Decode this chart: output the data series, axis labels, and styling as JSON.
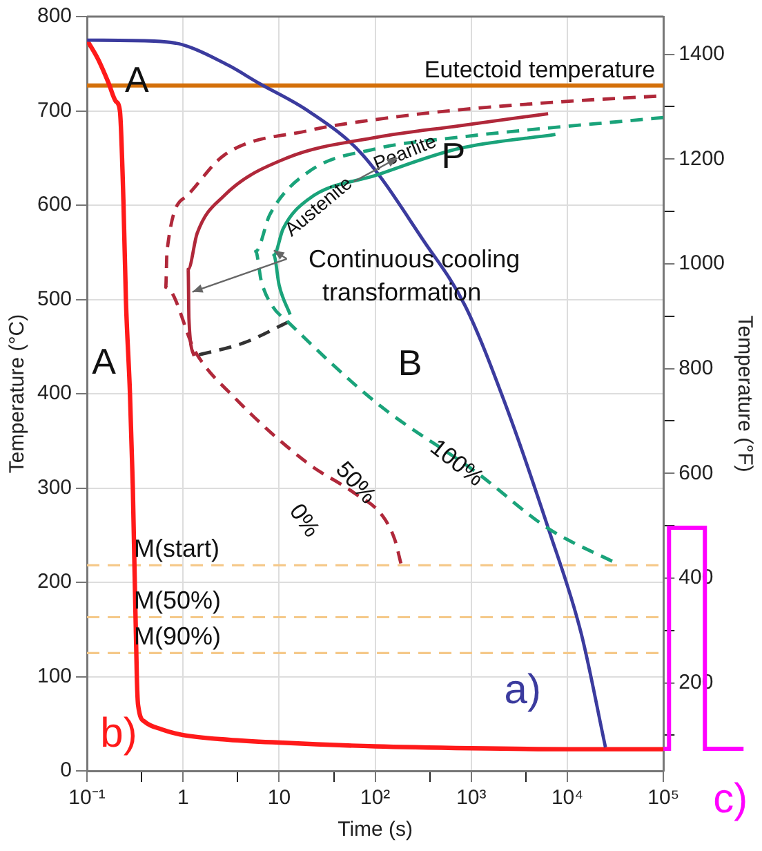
{
  "chart_data": {
    "type": "line",
    "xlabel": "Time (s)",
    "ylabel": "Temperature (°C)",
    "y2label": "Temperature (°F)",
    "log": "x",
    "grid": true,
    "marker": "none",
    "xlim": [
      0.1,
      100000
    ],
    "xticks": [
      {
        "value": 0.1,
        "label": "10⁻¹"
      },
      {
        "value": 0.37,
        "label": null
      },
      1,
      {
        "value": 3.7,
        "label": null
      },
      10,
      {
        "value": 37,
        "label": null
      },
      {
        "value": 100,
        "label": "10²"
      },
      {
        "value": 370,
        "label": null
      },
      {
        "value": 1000,
        "label": "10³"
      },
      {
        "value": 3700,
        "label": null
      },
      {
        "value": 10000,
        "label": "10⁴"
      },
      {
        "value": 100000,
        "label": "10⁵"
      }
    ],
    "ylim": [
      0,
      800
    ],
    "yticks": [
      0,
      100,
      200,
      300,
      400,
      500,
      600,
      700,
      800
    ],
    "y2lim": [
      32,
      1472
    ],
    "y2ticks": [
      {
        "value": 100,
        "label": null
      },
      200,
      {
        "value": 300,
        "label": null
      },
      400,
      {
        "value": 500,
        "label": null
      },
      600,
      {
        "value": 700,
        "label": null
      },
      800,
      {
        "value": 900,
        "label": null
      },
      1000,
      {
        "value": 1100,
        "label": null
      },
      1200,
      {
        "value": 1300,
        "label": null
      },
      1400
    ],
    "series": [
      {
        "name": "b)",
        "color": "#ff1a1a",
        "line_style": "solid",
        "x": [
          0.1,
          0.13,
          0.167,
          0.2,
          0.22,
          0.24,
          0.254,
          0.28,
          0.3,
          0.33,
          0.34,
          0.4,
          0.6,
          1,
          3,
          10,
          100,
          1000,
          10000,
          100000
        ],
        "values": [
          775,
          755,
          730,
          710,
          700,
          600,
          500,
          400,
          300,
          100,
          70,
          52,
          44,
          38,
          33,
          30,
          26,
          24,
          23,
          23
        ]
      },
      {
        "name": "a)",
        "color": "#3b3b9e",
        "line_style": "solid",
        "x": [
          0.1,
          0.5,
          1,
          3,
          6,
          20,
          73,
          320,
          865,
          2240,
          6340,
          13900,
          24900
        ],
        "values": [
          775,
          774,
          770,
          748,
          730,
          700,
          654,
          562,
          493,
          390,
          257,
          146,
          25
        ]
      },
      {
        "color": "#b0283a",
        "line_style": "dashed",
        "x": [
          185,
          160,
          120,
          60,
          20,
          3.5,
          1.35,
          0.66,
          0.68,
          1.1,
          2.67,
          20,
          104,
          735,
          9700,
          100000
        ],
        "values": [
          220,
          245,
          270,
          295,
          326,
          395,
          444,
          513,
          551,
          610,
          653,
          679,
          691,
          701,
          710,
          716
        ]
      },
      {
        "color": "#b0283a",
        "line_style": "solid",
        "x": [
          6300,
          730,
          104,
          12,
          2.67,
          1.4,
          1.13,
          1.15,
          1.3
        ],
        "values": [
          697,
          684,
          672,
          650,
          610,
          570,
          532,
          480,
          440
        ]
      },
      {
        "color": "#333333",
        "line_style": "dashed",
        "x": [
          12.4,
          4.3,
          1.3
        ],
        "values": [
          476,
          454,
          440
        ]
      },
      {
        "color": "#1aa37a",
        "line_style": "dashed",
        "x": [
          100000,
          735,
          104,
          20,
          8,
          5.7,
          6.5,
          8.5,
          12.4,
          104,
          1150,
          6340,
          34000
        ],
        "values": [
          693,
          672,
          660,
          635,
          590,
          551,
          520,
          493,
          476,
          390,
          316,
          257,
          219
        ]
      },
      {
        "color": "#1aa37a",
        "line_style": "solid",
        "x": [
          7500,
          735,
          104,
          20,
          11,
          8.8,
          10,
          13
        ],
        "values": [
          675,
          660,
          632,
          606,
          575,
          547,
          515,
          484
        ]
      }
    ],
    "ref_lines": [
      {
        "axis": "y",
        "value": 727,
        "label": "Eutectoid temperature",
        "color": "#d4700a",
        "line_style": "solid"
      },
      {
        "axis": "y",
        "value": 218,
        "label": "M(start)",
        "color": "#f5c98a",
        "line_style": "dashed"
      },
      {
        "axis": "y",
        "value": 163,
        "label": "M(50%)",
        "color": "#f5c98a",
        "line_style": "dashed"
      },
      {
        "axis": "y",
        "value": 125,
        "label": "M(90%)",
        "color": "#f5c98a",
        "line_style": "dashed"
      }
    ],
    "annotations": [
      "A",
      "A",
      "P",
      "Pearlite",
      "Austenite",
      {
        "text": "Continuous cooling transformation",
        "x": 1.25,
        "y": 508
      },
      "B",
      "0%",
      {
        "text": "50%",
        "x": 62,
        "y": 305
      },
      {
        "text": "100%",
        "x": 700,
        "y": 326
      },
      "c)"
    ]
  }
}
